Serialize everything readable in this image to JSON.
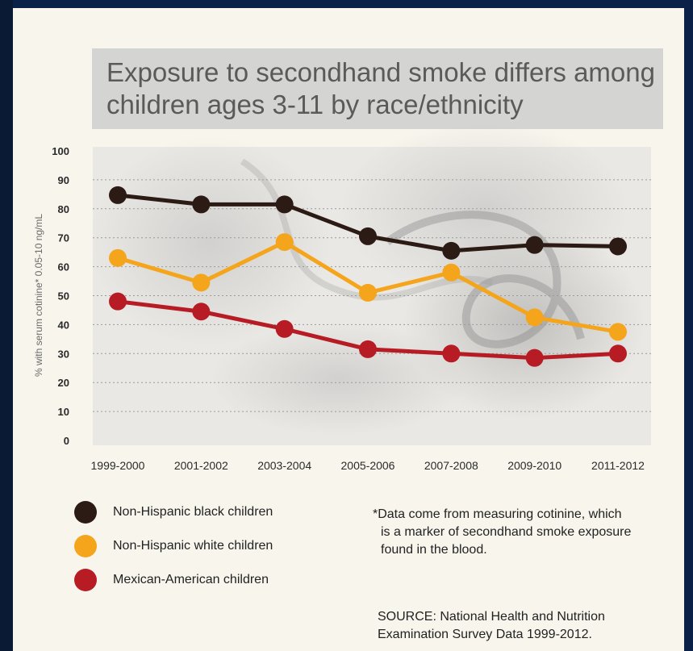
{
  "title": "Exposure to secondhand smoke differs among children ages 3-11 by race/ethnicity",
  "footnote": {
    "lines": [
      "*Data come from measuring cotinine, which",
      "is a marker of secondhand smoke exposure",
      "found in the blood."
    ]
  },
  "source": {
    "lines": [
      "SOURCE: National Health and Nutrition",
      "Examination Survey Data 1999-2012."
    ]
  },
  "colors": {
    "black": "#2c1a14",
    "white": "#f5a51c",
    "mexican": "#b71c25",
    "grid": "#9a9a9a",
    "axis_text": "#2a2a2a"
  },
  "chart_data": {
    "type": "line",
    "title": "Exposure to secondhand smoke differs among children ages 3-11 by race/ethnicity",
    "ylabel": "% with serum cotinine* 0.05-10 ng/mL",
    "xlabel": "",
    "ylim": [
      0,
      100
    ],
    "yticks": [
      0,
      10,
      20,
      30,
      40,
      50,
      60,
      70,
      80,
      90,
      100
    ],
    "grid": true,
    "legend_position": "bottom-left",
    "categories": [
      "1999-2000",
      "2001-2002",
      "2003-2004",
      "2005-2006",
      "2007-2008",
      "2009-2010",
      "2011-2012"
    ],
    "series": [
      {
        "name": "Non-Hispanic black children",
        "color": "#2c1a14",
        "values": [
          84.7,
          81.5,
          81.5,
          70.5,
          65.5,
          67.5,
          67.0
        ]
      },
      {
        "name": "Non-Hispanic white children",
        "color": "#f5a51c",
        "values": [
          63.0,
          54.5,
          68.5,
          51.0,
          58.0,
          42.5,
          37.5
        ]
      },
      {
        "name": "Mexican-American children",
        "color": "#b71c25",
        "values": [
          48.0,
          44.5,
          38.5,
          31.5,
          30.0,
          28.5,
          30.0
        ]
      }
    ]
  }
}
